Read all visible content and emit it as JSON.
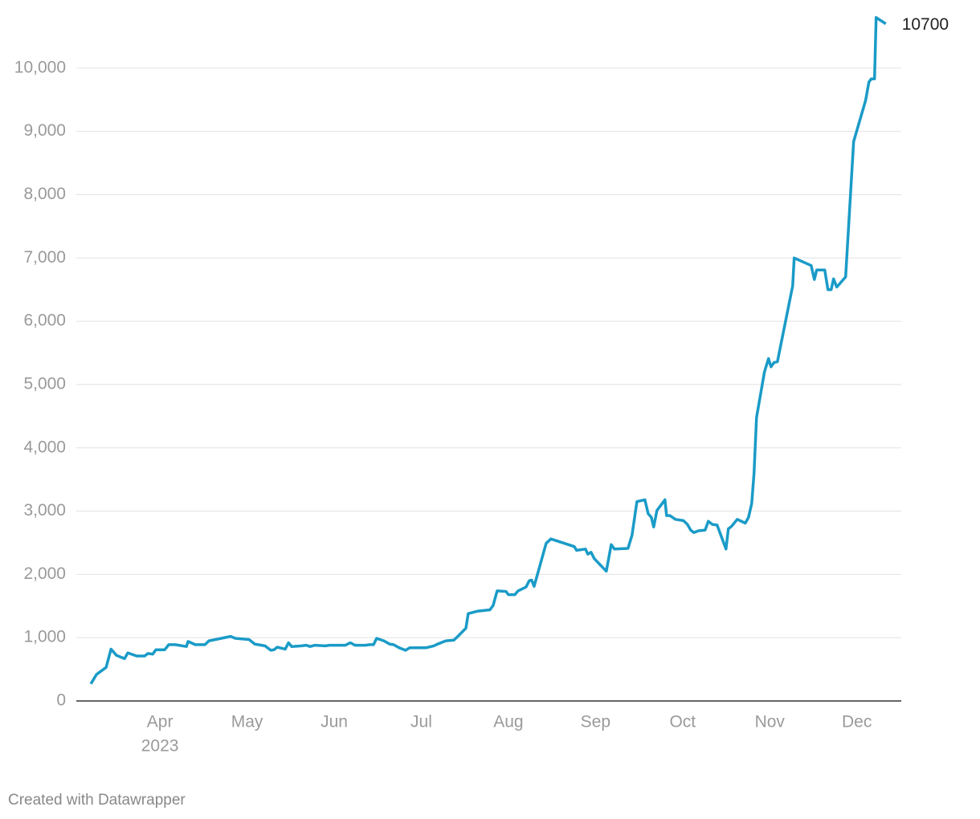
{
  "chart_data": {
    "type": "line",
    "x": [
      3.207,
      3.272,
      3.382,
      3.438,
      3.502,
      3.594,
      3.631,
      3.733,
      3.825,
      3.862,
      3.917,
      3.954,
      4.055,
      4.101,
      4.175,
      4.304,
      4.323,
      4.406,
      4.516,
      4.562,
      4.811,
      4.866,
      5.023,
      5.088,
      5.207,
      5.272,
      5.309,
      5.346,
      5.438,
      5.475,
      5.512,
      5.622,
      5.677,
      5.724,
      5.779,
      5.899,
      5.945,
      6.129,
      6.184,
      6.24,
      6.359,
      6.406,
      6.452,
      6.488,
      6.571,
      6.636,
      6.682,
      6.747,
      6.82,
      6.866,
      7.051,
      7.143,
      7.189,
      7.281,
      7.373,
      7.419,
      7.512,
      7.539,
      7.65,
      7.788,
      7.825,
      7.871,
      7.972,
      8.0,
      8.074,
      8.111,
      8.203,
      8.24,
      8.267,
      8.295,
      8.433,
      8.488,
      8.756,
      8.783,
      8.885,
      8.912,
      8.949,
      8.986,
      9.124,
      9.18,
      9.217,
      9.373,
      9.419,
      9.475,
      9.567,
      9.604,
      9.641,
      9.668,
      9.705,
      9.797,
      9.816,
      9.853,
      9.917,
      10.009,
      10.055,
      10.092,
      10.129,
      10.184,
      10.258,
      10.295,
      10.341,
      10.396,
      10.498,
      10.525,
      10.562,
      10.627,
      10.719,
      10.756,
      10.793,
      10.82,
      10.848,
      10.94,
      10.986,
      11.014,
      11.051,
      11.088,
      11.263,
      11.281,
      11.475,
      11.512,
      11.539,
      11.631,
      11.668,
      11.705,
      11.733,
      11.77,
      11.871,
      11.963,
      12.101,
      12.138,
      12.166,
      12.203,
      12.221,
      12.332
    ],
    "series": [
      {
        "color": "#1a9bc7",
        "values": [
          270,
          420,
          530,
          820,
          720,
          670,
          760,
          710,
          710,
          750,
          740,
          810,
          810,
          890,
          890,
          860,
          940,
          890,
          890,
          950,
          1020,
          990,
          970,
          900,
          870,
          800,
          810,
          850,
          820,
          920,
          860,
          870,
          880,
          860,
          880,
          870,
          880,
          880,
          920,
          880,
          880,
          890,
          890,
          990,
          950,
          900,
          890,
          840,
          800,
          840,
          840,
          870,
          900,
          950,
          960,
          1020,
          1150,
          1380,
          1420,
          1440,
          1510,
          1740,
          1730,
          1680,
          1680,
          1740,
          1800,
          1900,
          1910,
          1810,
          2490,
          2560,
          2440,
          2380,
          2400,
          2320,
          2350,
          2250,
          2050,
          2470,
          2400,
          2410,
          2620,
          3150,
          3180,
          2960,
          2900,
          2750,
          3010,
          3180,
          2930,
          2930,
          2870,
          2850,
          2790,
          2700,
          2660,
          2690,
          2700,
          2840,
          2790,
          2780,
          2400,
          2720,
          2760,
          2870,
          2810,
          2900,
          3120,
          3600,
          4480,
          5200,
          5410,
          5280,
          5350,
          5360,
          6560,
          7000,
          6880,
          6660,
          6810,
          6810,
          6500,
          6500,
          6670,
          6540,
          6700,
          8840,
          9490,
          9780,
          9830,
          9830,
          10800,
          10700
        ]
      }
    ],
    "xlim": [
      3.04,
      12.51
    ],
    "xticks": [
      {
        "value": 4,
        "label": "Apr"
      },
      {
        "value": 5,
        "label": "May"
      },
      {
        "value": 6,
        "label": "Jun"
      },
      {
        "value": 7,
        "label": "Jul"
      },
      {
        "value": 8,
        "label": "Aug"
      },
      {
        "value": 9,
        "label": "Sep"
      },
      {
        "value": 10,
        "label": "Oct"
      },
      {
        "value": 11,
        "label": "Nov"
      },
      {
        "value": 12,
        "label": "Dec"
      }
    ],
    "x_year_label": "2023",
    "ylim": [
      0,
      11000
    ],
    "yticks": [
      0,
      {
        "value": 1000,
        "label": "1,000"
      },
      {
        "value": 2000,
        "label": "2,000"
      },
      {
        "value": 3000,
        "label": "3,000"
      },
      {
        "value": 4000,
        "label": "4,000"
      },
      {
        "value": 5000,
        "label": "5,000"
      },
      {
        "value": 6000,
        "label": "6,000"
      },
      {
        "value": 7000,
        "label": "7,000"
      },
      {
        "value": 8000,
        "label": "8,000"
      },
      {
        "value": 9000,
        "label": "9,000"
      },
      {
        "value": 10000,
        "label": "10,000"
      }
    ],
    "grid": true,
    "credit": "Created with Datawrapper"
  }
}
